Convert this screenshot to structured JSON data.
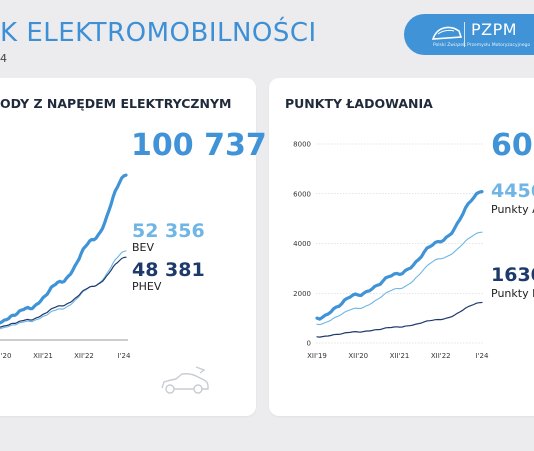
{
  "header": {
    "title": "K ELEKTROMOBILNOŚCI",
    "subtitle": "4"
  },
  "logo": {
    "name": "PZPM",
    "subtitle": "Polski Związek Przemysłu Motoryzacyjnego"
  },
  "colors": {
    "accent": "#3f93d6",
    "light": "#6fb5e5",
    "dark": "#1e3a6b"
  },
  "left_panel": {
    "title": "ODY Z NAPĘDEM ELEKTRYCZNYM",
    "total": "100 737",
    "bev_value": "52 356",
    "bev_label": "BEV",
    "phev_value": "48 381",
    "phev_label": "PHEV",
    "icon": "electric-car-icon"
  },
  "right_panel": {
    "title": "PUNKTY ŁADOWANIA",
    "total": "60",
    "ac_value": "4456",
    "ac_label": "Punkty A",
    "dc_value": "1630",
    "dc_label": "Punkty D"
  },
  "chart_data": [
    {
      "type": "line",
      "title": "",
      "x_ticks": [
        "'20",
        "XII'21",
        "XII'22",
        "I'24"
      ],
      "x": [
        "XII'19",
        "XII'20",
        "XII'21",
        "XII'22",
        "I'24"
      ],
      "series": [
        {
          "name": "",
          "values": [
            7000,
            16000,
            33000,
            60000,
            100737
          ]
        },
        {
          "name": "BEV",
          "values": [
            3000,
            7500,
            15500,
            30000,
            52356
          ]
        },
        {
          "name": "PHEV",
          "values": [
            4000,
            8500,
            17500,
            30000,
            48381
          ]
        }
      ]
    },
    {
      "type": "line",
      "title": "",
      "x": [
        "XII'19",
        "XII'20",
        "XII'21",
        "XII'22",
        "I'24"
      ],
      "y_ticks": [
        0,
        2000,
        4000,
        6000,
        8000
      ],
      "ylim": [
        0,
        8000
      ],
      "series": [
        {
          "name": "",
          "values": [
            1000,
            1950,
            2800,
            4100,
            6086
          ]
        },
        {
          "name": "Punkty A",
          "values": [
            750,
            1400,
            2200,
            3400,
            4456
          ]
        },
        {
          "name": "Punkty D",
          "values": [
            250,
            450,
            650,
            950,
            1630
          ]
        }
      ]
    }
  ]
}
